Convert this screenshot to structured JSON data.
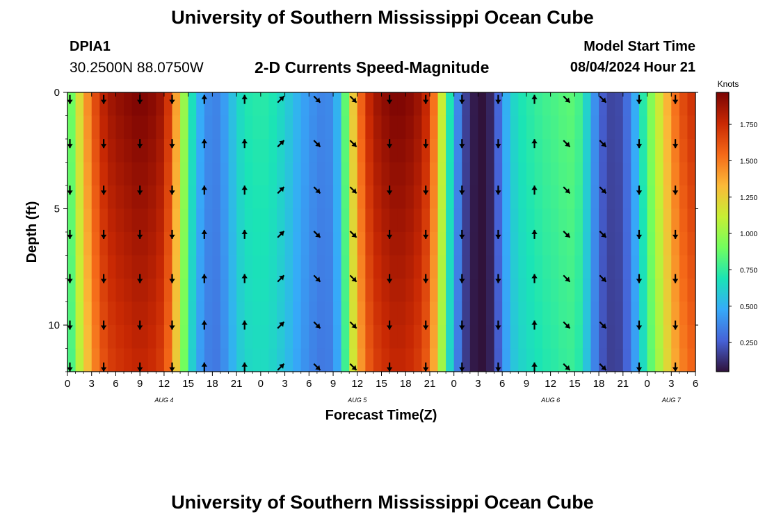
{
  "header": {
    "title": "University of Southern Mississippi Ocean Cube",
    "station_id": "DPIA1",
    "station_coords": "30.2500N  88.0750W",
    "model_start_label": "Model Start Time",
    "model_start_value": "08/04/2024 Hour 21"
  },
  "footer": {
    "title": "University of Southern Mississippi Ocean Cube"
  },
  "chart_data": {
    "type": "heatmap",
    "title": "2-D Currents Speed-Magnitude",
    "xlabel": "Forecast Time(Z)",
    "ylabel": "Depth (ft)",
    "xlim": [
      0,
      78
    ],
    "ylim": [
      12,
      0
    ],
    "x_tick_hours": [
      0,
      3,
      6,
      9,
      12,
      15,
      18,
      21,
      24,
      27,
      30,
      33,
      36,
      39,
      42,
      45,
      48,
      51,
      54,
      57,
      60,
      63,
      66,
      69,
      72,
      75,
      78
    ],
    "x_tick_labels": [
      "0",
      "3",
      "6",
      "9",
      "12",
      "15",
      "18",
      "21",
      "0",
      "3",
      "6",
      "9",
      "12",
      "15",
      "18",
      "21",
      "0",
      "3",
      "6",
      "9",
      "12",
      "15",
      "18",
      "21",
      "0",
      "3",
      "6"
    ],
    "y_ticks": [
      0,
      5,
      10
    ],
    "y_tick_labels": [
      "0",
      "5",
      "10"
    ],
    "date_labels": [
      {
        "hour": 12,
        "text": "AUG 4"
      },
      {
        "hour": 36,
        "text": "AUG 5"
      },
      {
        "hour": 60,
        "text": "AUG 6"
      },
      {
        "hour": 75,
        "text": "AUG 7"
      }
    ],
    "speed_profile_hours": [
      0,
      1,
      2,
      3,
      4,
      5,
      6,
      7,
      8,
      9,
      10,
      11,
      12,
      13,
      14,
      15,
      16,
      17,
      18,
      19,
      20,
      21,
      22,
      23,
      24,
      25,
      26,
      27,
      28,
      29,
      30,
      31,
      32,
      33,
      34,
      35,
      36,
      37,
      38,
      39,
      40,
      41,
      42,
      43,
      44,
      45,
      46,
      47,
      48,
      49,
      50,
      51,
      52,
      53,
      54,
      55,
      56,
      57,
      58,
      59,
      60,
      61,
      62,
      63,
      64,
      65,
      66,
      67,
      68,
      69,
      70,
      71,
      72,
      73,
      74,
      75,
      76,
      77,
      78
    ],
    "speed_profile_knots": [
      0.75,
      1.05,
      1.35,
      1.55,
      1.75,
      1.85,
      1.9,
      1.92,
      1.95,
      1.97,
      1.95,
      1.92,
      1.85,
      1.6,
      1.2,
      0.8,
      0.55,
      0.42,
      0.35,
      0.38,
      0.5,
      0.62,
      0.7,
      0.72,
      0.73,
      0.72,
      0.68,
      0.62,
      0.55,
      0.48,
      0.42,
      0.38,
      0.36,
      0.4,
      0.62,
      1.1,
      1.45,
      1.7,
      1.85,
      1.9,
      1.95,
      1.97,
      1.95,
      1.92,
      1.85,
      1.7,
      1.35,
      0.9,
      0.5,
      0.25,
      0.1,
      0.05,
      0.05,
      0.15,
      0.4,
      0.6,
      0.68,
      0.72,
      0.75,
      0.78,
      0.8,
      0.82,
      0.85,
      0.85,
      0.75,
      0.5,
      0.3,
      0.2,
      0.18,
      0.22,
      0.38,
      0.6,
      0.85,
      1.05,
      1.25,
      1.45,
      1.6,
      1.7,
      1.75
    ],
    "arrow_depths_ft": [
      0.3,
      2.2,
      4.2,
      6.1,
      8.0,
      10.0,
      11.8
    ],
    "arrow_times_h": [
      0.3,
      4.5,
      9,
      13,
      17,
      22,
      26.5,
      31,
      35.5,
      40,
      44.5,
      49,
      53.5,
      58,
      62,
      66.5,
      71,
      75.5
    ],
    "arrow_directions_deg": [
      180,
      180,
      180,
      180,
      0,
      0,
      45,
      135,
      135,
      180,
      180,
      180,
      180,
      0,
      135,
      135,
      180,
      180
    ],
    "colorbar": {
      "label": "Knots",
      "min": 0.05,
      "max": 1.97,
      "ticks": [
        0.25,
        0.5,
        0.75,
        1.0,
        1.25,
        1.5,
        1.75
      ],
      "tick_labels": [
        "0.250",
        "0.500",
        "0.750",
        "1.000",
        "1.250",
        "1.500",
        "1.750"
      ],
      "colors": [
        "#30123b",
        "#4662d7",
        "#36aaf9",
        "#1ae4b6",
        "#72fe5e",
        "#c7ef34",
        "#fbb938",
        "#f56918",
        "#c92903",
        "#7a0403"
      ]
    }
  }
}
